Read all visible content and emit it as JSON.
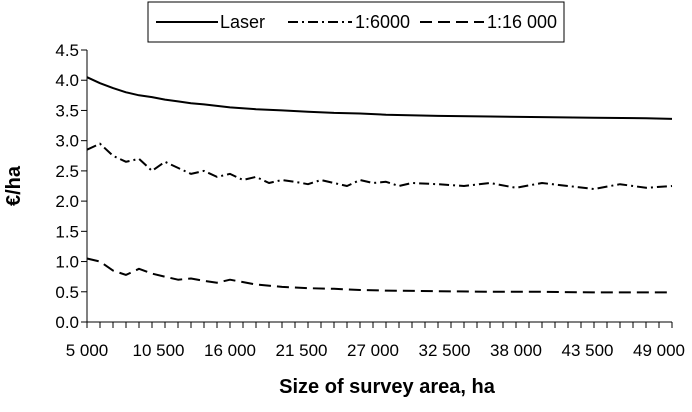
{
  "chart_data": {
    "type": "line",
    "title": "",
    "xlabel": "Size of survey area, ha",
    "ylabel": "€/ha",
    "x_tick_labels": [
      "5 000",
      "10 500",
      "16 000",
      "21 500",
      "27 000",
      "32 500",
      "38 000",
      "43 500",
      "49 000"
    ],
    "x_tick_values": [
      5000,
      10500,
      16000,
      21500,
      27000,
      32500,
      38000,
      43500,
      49000
    ],
    "xlim": [
      5000,
      50000
    ],
    "y_ticks": [
      "0.0",
      "0.5",
      "1.0",
      "1.5",
      "2.0",
      "2.5",
      "3.0",
      "3.5",
      "4.0",
      "4.5"
    ],
    "ylim": [
      0,
      4.5
    ],
    "grid": false,
    "legend_position": "top-center",
    "series": [
      {
        "name": "Laser",
        "style": "solid",
        "x": [
          5000,
          6000,
          7000,
          8000,
          9000,
          10000,
          11000,
          12000,
          13000,
          14000,
          16000,
          18000,
          20000,
          22000,
          24000,
          26000,
          28000,
          32000,
          36000,
          40000,
          44000,
          48000,
          50000
        ],
        "y": [
          4.05,
          3.95,
          3.87,
          3.8,
          3.75,
          3.72,
          3.68,
          3.65,
          3.62,
          3.6,
          3.55,
          3.52,
          3.5,
          3.48,
          3.46,
          3.45,
          3.43,
          3.41,
          3.4,
          3.39,
          3.38,
          3.37,
          3.36
        ]
      },
      {
        "name": "1:6000",
        "style": "dash-dot",
        "x": [
          5000,
          6000,
          7000,
          8000,
          9000,
          10000,
          11000,
          12000,
          13000,
          14000,
          15000,
          16000,
          17000,
          18000,
          19000,
          20000,
          21000,
          22000,
          23000,
          24000,
          25000,
          26000,
          27000,
          28000,
          29000,
          30000,
          32000,
          34000,
          36000,
          38000,
          40000,
          42000,
          44000,
          46000,
          48000,
          50000
        ],
        "y": [
          2.85,
          2.95,
          2.75,
          2.65,
          2.7,
          2.5,
          2.65,
          2.55,
          2.45,
          2.5,
          2.4,
          2.45,
          2.35,
          2.4,
          2.3,
          2.35,
          2.32,
          2.28,
          2.35,
          2.3,
          2.25,
          2.35,
          2.3,
          2.32,
          2.25,
          2.3,
          2.28,
          2.25,
          2.3,
          2.22,
          2.3,
          2.25,
          2.2,
          2.28,
          2.22,
          2.25
        ]
      },
      {
        "name": "1:16 000",
        "style": "dashed",
        "x": [
          5000,
          6000,
          7000,
          8000,
          9000,
          10000,
          11000,
          12000,
          13000,
          14000,
          15000,
          16000,
          18000,
          20000,
          22000,
          24000,
          26000,
          28000,
          32000,
          36000,
          40000,
          44000,
          48000,
          50000
        ],
        "y": [
          1.05,
          1.0,
          0.85,
          0.78,
          0.88,
          0.8,
          0.75,
          0.7,
          0.72,
          0.68,
          0.65,
          0.7,
          0.62,
          0.58,
          0.56,
          0.55,
          0.53,
          0.52,
          0.51,
          0.5,
          0.5,
          0.49,
          0.49,
          0.49
        ]
      }
    ]
  }
}
